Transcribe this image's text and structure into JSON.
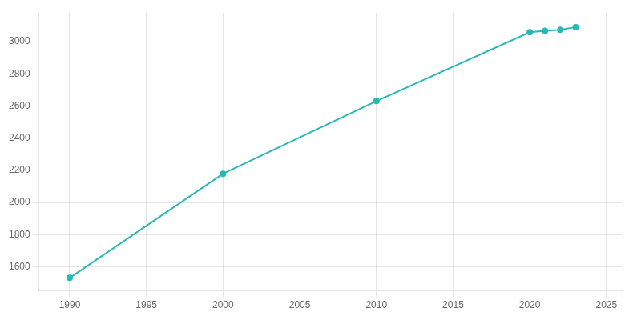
{
  "chart_data": {
    "type": "line",
    "x": [
      1990,
      2000,
      2010,
      2020,
      2021,
      2022,
      2023
    ],
    "values": [
      1531,
      2179,
      2631,
      3059,
      3068,
      3074,
      3091
    ],
    "color": "#29b8b8",
    "marker": "circle",
    "xlim": [
      1988,
      2026
    ],
    "xticks": [
      1990,
      1995,
      2000,
      2005,
      2010,
      2015,
      2020,
      2025
    ],
    "ylim": [
      1450,
      3180
    ],
    "yticks": [
      1600,
      1800,
      2000,
      2200,
      2400,
      2600,
      2800,
      3000
    ],
    "grid": true
  }
}
